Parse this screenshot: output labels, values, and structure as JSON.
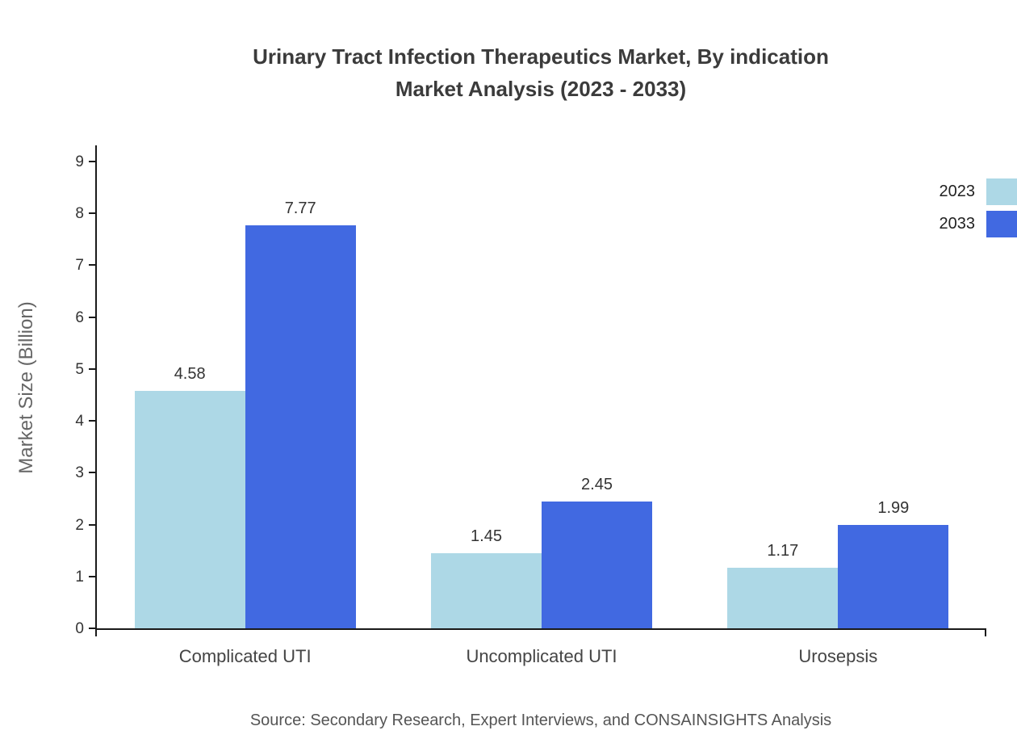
{
  "title": {
    "line1": "Urinary Tract Infection Therapeutics Market, By indication",
    "line2": "Market Analysis (2023 - 2033)"
  },
  "source": "Source: Secondary Research, Expert Interviews, and CONSAINSIGHTS Analysis",
  "chart_data": {
    "type": "bar",
    "title": "Urinary Tract Infection Therapeutics Market, By indication Market Analysis (2023 - 2033)",
    "categories": [
      "Complicated UTI",
      "Uncomplicated UTI",
      "Urosepsis"
    ],
    "series": [
      {
        "name": "2023",
        "color": "#add8e6",
        "values": [
          4.58,
          1.45,
          1.17
        ]
      },
      {
        "name": "2033",
        "color": "#4169e1",
        "values": [
          7.77,
          2.45,
          1.99
        ]
      }
    ],
    "xlabel": "",
    "ylabel": "Market Size (Billion)",
    "ylim": [
      0,
      9
    ],
    "yticks": [
      0,
      1,
      2,
      3,
      4,
      5,
      6,
      7,
      8,
      9
    ],
    "grid": false,
    "legend_position": "top-right",
    "value_labels": true
  }
}
